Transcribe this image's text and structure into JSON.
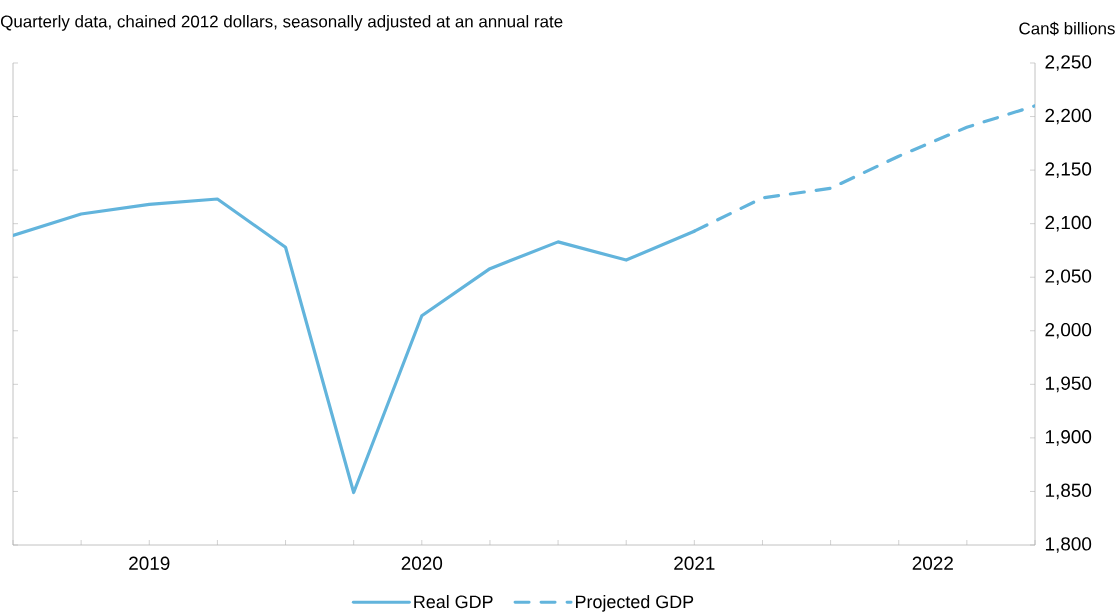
{
  "chart_data": {
    "type": "line",
    "subtitle": "Quarterly data, chained 2012 dollars, seasonally adjusted at an annual rate",
    "ylabel": "Can$ billions",
    "x": [
      "2019-01-01",
      "2019-04-01",
      "2019-07-01",
      "2019-10-01",
      "2020-01-01",
      "2020-04-01",
      "2020-07-01",
      "2020-10-01",
      "2021-01-01",
      "2021-04-01",
      "2021-07-01",
      "2021-10-01",
      "2022-01-01",
      "2022-04-01",
      "2022-07-01",
      "2022-10-01"
    ],
    "xlim": [
      "2019-01-01",
      "2022-10-01"
    ],
    "xticks": [
      {
        "value": "2019-01-01",
        "label": null
      },
      {
        "value": "2019-04-01",
        "label": null
      },
      {
        "value": "2019-07-01",
        "label": null
      },
      {
        "value": "2019-10-01",
        "label": null
      },
      {
        "value": "2020-01-01",
        "label": null
      },
      {
        "value": "2020-04-01",
        "label": null
      },
      {
        "value": "2020-07-01",
        "label": null
      },
      {
        "value": "2020-10-01",
        "label": null
      },
      {
        "value": "2021-01-01",
        "label": null
      },
      {
        "value": "2021-04-01",
        "label": null
      },
      {
        "value": "2021-07-01",
        "label": null
      },
      {
        "value": "2021-10-01",
        "label": null
      },
      {
        "value": "2022-01-01",
        "label": null
      },
      {
        "value": "2022-04-01",
        "label": null
      },
      {
        "value": "2022-07-01",
        "label": null
      },
      {
        "value": "2022-10-01",
        "label": null
      },
      {
        "value": "2019-07-01",
        "label": "2019"
      },
      {
        "value": "2020-07-01",
        "label": "2020"
      },
      {
        "value": "2021-07-01",
        "label": "2021"
      },
      {
        "value": "2022-05-16",
        "label": "2022"
      }
    ],
    "ylim": [
      1800,
      2250
    ],
    "yticks": [
      {
        "value": 1800,
        "label": "1,800"
      },
      {
        "value": 1850,
        "label": "1,850"
      },
      {
        "value": 1900,
        "label": "1,900"
      },
      {
        "value": 1950,
        "label": "1,950"
      },
      {
        "value": 2000,
        "label": "2,000"
      },
      {
        "value": 2050,
        "label": "2,050"
      },
      {
        "value": 2100,
        "label": "2,100"
      },
      {
        "value": 2150,
        "label": "2,150"
      },
      {
        "value": 2200,
        "label": "2,200"
      },
      {
        "value": 2250,
        "label": "2,250"
      }
    ],
    "legend": "bottom",
    "marker": "none",
    "series": [
      {
        "name": "Real GDP",
        "color": "#62b4dc",
        "line_style": "solid",
        "values": [
          2089,
          2109,
          2118,
          2123,
          2078,
          1849,
          2014,
          2058,
          2083,
          2066,
          2093,
          null,
          null,
          null,
          null,
          null
        ]
      },
      {
        "name": "Projected GDP",
        "color": "#62b4dc",
        "line_style": "dashed",
        "values": [
          null,
          null,
          null,
          null,
          null,
          null,
          null,
          null,
          null,
          null,
          2093,
          2124,
          2133,
          2163,
          2190,
          2210
        ]
      }
    ]
  }
}
